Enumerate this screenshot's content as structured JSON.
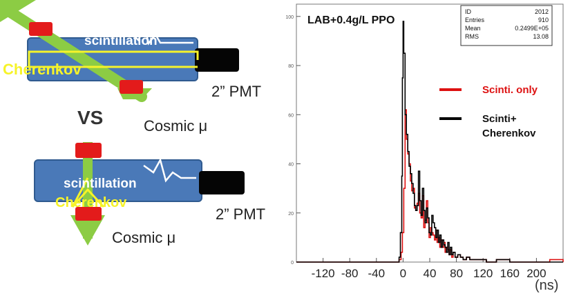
{
  "top_setup": {
    "scint_label": "scintillation",
    "cher_label": "Cherenkov",
    "pmt_label": "2” PMT",
    "muon_label": "Cosmic μ"
  },
  "vs_label": "VS",
  "bottom_setup": {
    "scint_label": "scintillation",
    "cher_label": "Cherenkov",
    "pmt_label": "2” PMT",
    "muon_label": "Cosmic μ"
  },
  "chart": {
    "title": "LAB+0.4g/L PPO",
    "stats": [
      {
        "key": "ID",
        "value": "2012"
      },
      {
        "key": "Entries",
        "value": "910"
      },
      {
        "key": "Mean",
        "value": "0.2499E+05"
      },
      {
        "key": "RMS",
        "value": "13.08"
      }
    ],
    "legend": [
      {
        "name": "Scinti. only",
        "color": "#dd1111"
      },
      {
        "name": "Scinti+\nCherenkov",
        "color": "#000000"
      }
    ],
    "x_unit": "(ns)"
  },
  "chart_data": {
    "type": "line",
    "title": "LAB+0.4g/L PPO",
    "xlabel": "(ns)",
    "ylabel": "",
    "xlim": [
      -160,
      240
    ],
    "ylim": [
      0,
      105
    ],
    "x_ticks": [
      -120,
      -80,
      -40,
      0,
      40,
      80,
      120,
      160,
      200
    ],
    "y_ticks": [
      0,
      20,
      40,
      60,
      80,
      100
    ],
    "series": [
      {
        "name": "Scinti. only",
        "color": "#dd1111",
        "x": [
          -160,
          -10,
          -6,
          -3,
          -1,
          1,
          3,
          5,
          7,
          9,
          11,
          13,
          15,
          17,
          19,
          21,
          23,
          25,
          27,
          29,
          31,
          33,
          35,
          37,
          39,
          41,
          43,
          45,
          47,
          49,
          51,
          53,
          55,
          57,
          59,
          61,
          63,
          65,
          67,
          69,
          71,
          73,
          75,
          78,
          82,
          86,
          90,
          95,
          100,
          110,
          125,
          140,
          160,
          180,
          200,
          220,
          240
        ],
        "y": [
          0,
          0,
          1,
          4,
          12,
          30,
          62,
          50,
          44,
          40,
          33,
          29,
          30,
          22,
          21,
          24,
          28,
          20,
          18,
          27,
          14,
          17,
          25,
          16,
          10,
          14,
          12,
          11,
          9,
          13,
          8,
          10,
          6,
          9,
          6,
          8,
          4,
          6,
          5,
          3,
          5,
          2,
          4,
          2,
          3,
          2,
          1,
          2,
          1,
          1,
          0,
          1,
          0,
          0,
          0,
          1,
          0
        ]
      },
      {
        "name": "Scinti+\nCherenkov",
        "color": "#000000",
        "x": [
          -160,
          -10,
          -6,
          -4,
          -2,
          -1,
          0,
          1,
          3,
          5,
          7,
          9,
          11,
          13,
          15,
          17,
          19,
          21,
          23,
          25,
          27,
          29,
          31,
          33,
          35,
          37,
          39,
          41,
          43,
          45,
          47,
          49,
          51,
          53,
          55,
          57,
          59,
          61,
          63,
          65,
          67,
          69,
          71,
          73,
          75,
          78,
          82,
          86,
          90,
          95,
          100,
          110,
          125,
          140,
          160,
          180,
          200,
          220,
          240
        ],
        "y": [
          0,
          0,
          2,
          12,
          35,
          75,
          98,
          85,
          60,
          52,
          45,
          39,
          36,
          32,
          28,
          23,
          21,
          23,
          37,
          25,
          19,
          30,
          21,
          16,
          22,
          18,
          12,
          11,
          19,
          16,
          14,
          10,
          13,
          8,
          11,
          6,
          9,
          7,
          6,
          4,
          8,
          3,
          6,
          3,
          4,
          2,
          3,
          2,
          1,
          2,
          1,
          1,
          0,
          1,
          0,
          0,
          0,
          0,
          0
        ]
      }
    ]
  }
}
